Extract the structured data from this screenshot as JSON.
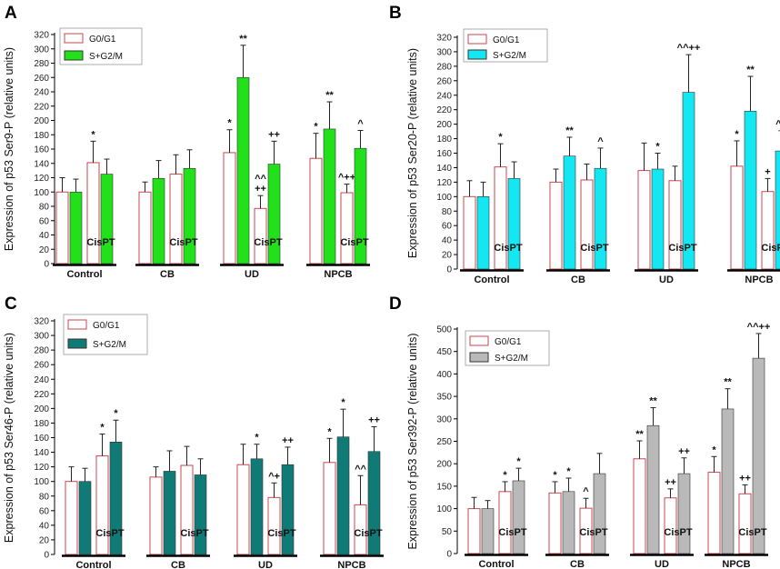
{
  "colors": {
    "g0_edge": "#c8484f",
    "green": "#22e01a",
    "cyan": "#14e6f2",
    "teal": "#0f7a76",
    "gray": "#b9b9b9",
    "errbar": "#222222",
    "axis": "#000000"
  },
  "chart_data": [
    {
      "panel": "A",
      "type": "bar",
      "ylabel": "Expression of p53 Ser9-P (relative units)",
      "ylim": [
        0,
        320
      ],
      "yticks": [
        0,
        20,
        40,
        60,
        80,
        100,
        120,
        140,
        160,
        180,
        200,
        220,
        240,
        260,
        280,
        300,
        320
      ],
      "legend": [
        "G0/G1",
        "S+G2/M"
      ],
      "legend_position": "top-left",
      "series_color": "green",
      "categories": [
        "Control",
        "CB",
        "UD",
        "NPCB"
      ],
      "cis_label": "CisPT",
      "series": [
        {
          "name": "G0/G1",
          "values": [
            100,
            100,
            155,
            147
          ],
          "errors": [
            20,
            14,
            32,
            35
          ],
          "labels": [
            "",
            "",
            "*",
            "*"
          ]
        },
        {
          "name": "S+G2/M",
          "values": [
            100,
            119,
            260,
            188
          ],
          "errors": [
            18,
            25,
            45,
            38
          ],
          "labels": [
            "",
            "",
            "**",
            "**"
          ]
        },
        {
          "name": "G0/G1 CisPT",
          "values": [
            141,
            125,
            77,
            99
          ],
          "errors": [
            30,
            27,
            18,
            12
          ],
          "labels": [
            "*",
            "",
            "^^\n++",
            "^+​+"
          ]
        },
        {
          "name": "S+G2/M CisPT",
          "values": [
            125,
            133,
            139,
            161
          ],
          "errors": [
            21,
            26,
            32,
            25
          ],
          "labels": [
            "",
            "",
            "++",
            "^"
          ]
        }
      ]
    },
    {
      "panel": "B",
      "type": "bar",
      "ylabel": "Expression of p53 Ser20-P (relative units)",
      "ylim": [
        0,
        320
      ],
      "yticks": [
        0,
        20,
        40,
        60,
        80,
        100,
        120,
        140,
        160,
        180,
        200,
        220,
        240,
        260,
        280,
        300,
        320
      ],
      "legend": [
        "G0/G1",
        "S+G2/M"
      ],
      "legend_position": "top-left",
      "series_color": "cyan",
      "categories": [
        "Control",
        "CB",
        "UD",
        "NPCB"
      ],
      "cis_label": "CisPT",
      "series": [
        {
          "name": "G0/G1",
          "values": [
            100,
            120,
            136,
            142
          ],
          "errors": [
            22,
            18,
            38,
            35
          ],
          "labels": [
            "",
            "",
            "",
            "*"
          ]
        },
        {
          "name": "S+G2/M",
          "values": [
            100,
            156,
            138,
            218
          ],
          "errors": [
            20,
            26,
            22,
            48
          ],
          "labels": [
            "",
            "**",
            "*",
            "**"
          ]
        },
        {
          "name": "G0/G1 CisPT",
          "values": [
            141,
            123,
            122,
            107
          ],
          "errors": [
            32,
            22,
            20,
            18
          ],
          "labels": [
            "*",
            "",
            "",
            "+"
          ]
        },
        {
          "name": "S+G2/M CisPT",
          "values": [
            125,
            139,
            244,
            163
          ],
          "errors": [
            23,
            28,
            52,
            28
          ],
          "labels": [
            "",
            "^",
            "^^++",
            "^+"
          ]
        }
      ]
    },
    {
      "panel": "C",
      "type": "bar",
      "ylabel": "Expression of p53 Ser46-P (relative units)",
      "ylim": [
        0,
        320
      ],
      "yticks": [
        0,
        20,
        40,
        60,
        80,
        100,
        120,
        140,
        160,
        180,
        200,
        220,
        240,
        260,
        280,
        300,
        320
      ],
      "legend": [
        "G0/G1",
        "S+G2/M"
      ],
      "legend_position": "top-left",
      "series_color": "teal",
      "categories": [
        "Control",
        "CB",
        "UD",
        "NPCB"
      ],
      "cis_label": "CisPT",
      "series": [
        {
          "name": "G0/G1",
          "values": [
            100,
            106,
            123,
            126
          ],
          "errors": [
            20,
            14,
            28,
            33
          ],
          "labels": [
            "",
            "",
            "",
            "*"
          ]
        },
        {
          "name": "S+G2/M",
          "values": [
            100,
            114,
            131,
            161
          ],
          "errors": [
            18,
            28,
            20,
            38
          ],
          "labels": [
            "",
            "",
            "*",
            "*"
          ]
        },
        {
          "name": "G0/G1 CisPT",
          "values": [
            135,
            122,
            78,
            68
          ],
          "errors": [
            30,
            26,
            20,
            40
          ],
          "labels": [
            "*",
            "",
            "^+",
            "^^"
          ]
        },
        {
          "name": "S+G2/M CisPT",
          "values": [
            154,
            109,
            123,
            141
          ],
          "errors": [
            30,
            22,
            24,
            34
          ],
          "labels": [
            "*",
            "",
            "++",
            "++"
          ]
        }
      ]
    },
    {
      "panel": "D",
      "type": "bar",
      "ylabel": "Expression of p53 Ser392-P (relative units)",
      "ylim": [
        0,
        500
      ],
      "yticks": [
        0,
        50,
        100,
        150,
        200,
        250,
        300,
        350,
        400,
        450,
        500
      ],
      "legend": [
        "G0/G1",
        "S+G2/M"
      ],
      "legend_position": "top-left",
      "series_color": "gray",
      "categories": [
        "Control",
        "CB",
        "UD",
        "NPCB"
      ],
      "cis_label": "CisPT",
      "series": [
        {
          "name": "G0/G1",
          "values": [
            100,
            135,
            211,
            181
          ],
          "errors": [
            25,
            25,
            40,
            35
          ],
          "labels": [
            "",
            "*",
            "**",
            "*"
          ]
        },
        {
          "name": "S+G2/M",
          "values": [
            100,
            138,
            285,
            322
          ],
          "errors": [
            18,
            30,
            40,
            45
          ],
          "labels": [
            "",
            "*",
            "**",
            "**"
          ]
        },
        {
          "name": "G0/G1 CisPT",
          "values": [
            138,
            101,
            124,
            133
          ],
          "errors": [
            22,
            22,
            20,
            20
          ],
          "labels": [
            "*",
            "^",
            "++",
            "++"
          ]
        },
        {
          "name": "S+G2/M CisPT",
          "values": [
            162,
            178,
            178,
            435
          ],
          "errors": [
            28,
            45,
            35,
            55
          ],
          "labels": [
            "*",
            "",
            "++",
            "^^++"
          ]
        }
      ]
    }
  ]
}
